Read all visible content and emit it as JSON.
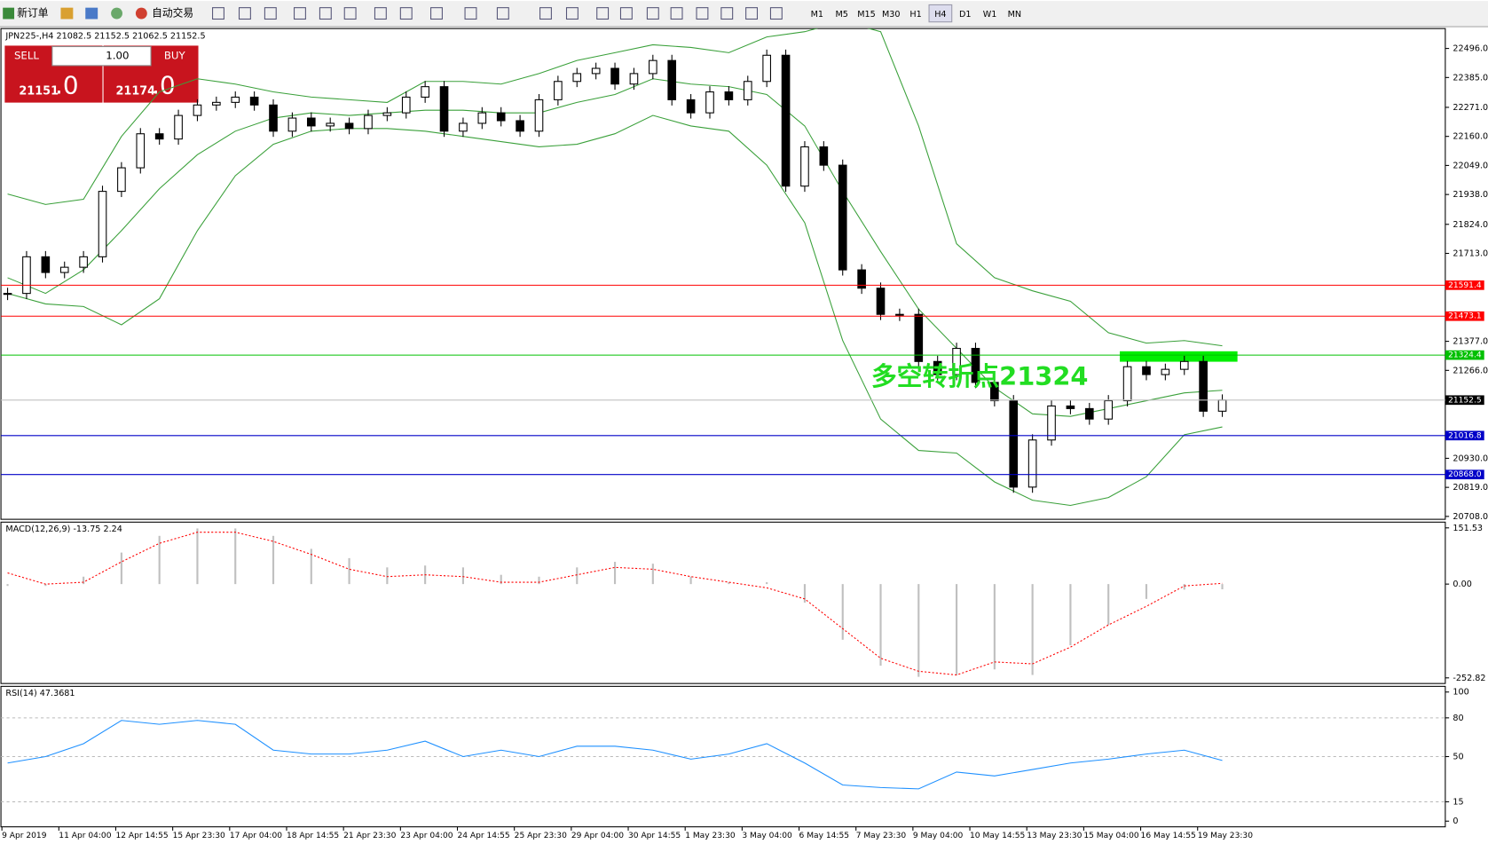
{
  "toolbar": {
    "new_order": "新订单",
    "auto_trading": "自动交易",
    "timeframes": [
      "M1",
      "M5",
      "M15",
      "M30",
      "H1",
      "H4",
      "D1",
      "W1",
      "MN"
    ],
    "active_timeframe": "H4"
  },
  "trade_panel": {
    "sell": "SELL",
    "buy": "BUY",
    "lots": "1.00",
    "sell_big": "21151",
    "sell_small": ".0",
    "buy_big": "21174",
    "buy_small": ".0"
  },
  "chart_data": [
    {
      "type": "candlestick",
      "title": "JPN225-,H4  21082.5 21152.5 21062.5 21152.5",
      "annotation": "多空转折点21324",
      "annotation_color": "#22dd22",
      "closes": [
        21560,
        21700,
        21640,
        21660,
        21700,
        21950,
        22040,
        22170,
        22150,
        22240,
        22280,
        22290,
        22310,
        22280,
        22180,
        22230,
        22200,
        22210,
        22190,
        22240,
        22250,
        22310,
        22350,
        22180,
        22210,
        22250,
        22220,
        22180,
        22300,
        22370,
        22400,
        22420,
        22360,
        22400,
        22450,
        22300,
        22250,
        22330,
        22300,
        22370,
        22470,
        21970,
        22120,
        22050,
        21650,
        21580,
        21480,
        21480,
        21300,
        21250,
        21350,
        21220,
        21150,
        20820,
        21000,
        21130,
        21120,
        21080,
        21150,
        21280,
        21250,
        21270,
        21300,
        21110,
        21152.5
      ],
      "bands": [
        {
          "name": "Upper",
          "color": "#3aa03a",
          "values": [
            21940,
            21900,
            21920,
            22160,
            22330,
            22380,
            22360,
            22330,
            22310,
            22300,
            22290,
            22370,
            22370,
            22360,
            22400,
            22450,
            22480,
            22510,
            22500,
            22480,
            22540,
            22560,
            22600,
            22560,
            22200,
            21750,
            21620,
            21570,
            21530,
            21410,
            21370,
            21380,
            21360
          ]
        },
        {
          "name": "Middle",
          "color": "#3aa03a",
          "values": [
            21620,
            21560,
            21650,
            21800,
            21960,
            22090,
            22180,
            22230,
            22250,
            22240,
            22250,
            22260,
            22260,
            22250,
            22250,
            22290,
            22320,
            22380,
            22360,
            22350,
            22320,
            22200,
            21950,
            21720,
            21500,
            21350,
            21200,
            21100,
            21090,
            21120,
            21150,
            21180,
            21190
          ]
        },
        {
          "name": "Lower",
          "color": "#3aa03a",
          "values": [
            21560,
            21520,
            21510,
            21440,
            21540,
            21800,
            22010,
            22130,
            22180,
            22190,
            22190,
            22180,
            22160,
            22140,
            22120,
            22130,
            22170,
            22240,
            22200,
            22180,
            22050,
            21830,
            21380,
            21080,
            20960,
            20950,
            20840,
            20770,
            20750,
            20780,
            20860,
            21020,
            21050
          ]
        }
      ],
      "hlines": [
        {
          "value": 21591.4,
          "color": "#ff0000"
        },
        {
          "value": 21473.1,
          "color": "#ff0000"
        },
        {
          "value": 21324.4,
          "color": "#00c000"
        },
        {
          "value": 21152.5,
          "color": "#c0c0c0"
        },
        {
          "value": 21016.8,
          "color": "#0000c8"
        },
        {
          "value": 20868,
          "label": "20868.0",
          "color": "#0000c8"
        }
      ],
      "ylim": [
        20697,
        22572
      ],
      "yticks": [
        {
          "value": 22496,
          "label": "22496.0"
        },
        {
          "value": 22385,
          "label": "22385.0"
        },
        {
          "value": 22271,
          "label": "22271.0"
        },
        {
          "value": 22160,
          "label": "22160.0"
        },
        {
          "value": 22049,
          "label": "22049.0"
        },
        {
          "value": 21938,
          "label": "21938.0"
        },
        {
          "value": 21824,
          "label": "21824.0"
        },
        {
          "value": 21713,
          "label": "21713.0"
        },
        {
          "value": 21377,
          "label": "21377.0"
        },
        {
          "value": 21266,
          "label": "21266.0"
        },
        {
          "value": 20930,
          "label": "20930.0"
        },
        {
          "value": 20819,
          "label": "20819.0"
        },
        {
          "value": 20708,
          "label": "20708.0"
        }
      ]
    },
    {
      "type": "macd",
      "title": "MACD(12,26,9) -13.75 2.24",
      "series": [
        {
          "name": "MACD",
          "color": "#c0c0c0",
          "values": [
            -5,
            -5,
            20,
            85,
            130,
            150,
            150,
            130,
            95,
            70,
            45,
            50,
            45,
            25,
            20,
            45,
            60,
            55,
            20,
            5,
            5,
            -50,
            -150,
            -220,
            -250,
            -245,
            -230,
            -245,
            -165,
            -110,
            -40,
            -15,
            -14
          ]
        },
        {
          "name": "Signal",
          "color": "#ff0000",
          "values": [
            30,
            0,
            5,
            60,
            110,
            140,
            140,
            115,
            80,
            40,
            20,
            25,
            20,
            5,
            5,
            25,
            45,
            40,
            20,
            5,
            -10,
            -40,
            -120,
            -200,
            -235,
            -245,
            -210,
            -215,
            -170,
            -110,
            -60,
            -5,
            2
          ]
        }
      ],
      "ylim": [
        -268,
        167
      ],
      "yticks": [
        151.53,
        {
          "value": 0,
          "label": "0.00"
        },
        -252.82
      ]
    },
    {
      "type": "rsi",
      "title": "RSI(14) 47.3681",
      "series": [
        {
          "name": "RSI",
          "color": "#1e90ff",
          "values": [
            45,
            50,
            60,
            78,
            75,
            78,
            75,
            55,
            52,
            52,
            55,
            62,
            50,
            55,
            50,
            58,
            58,
            55,
            48,
            52,
            60,
            45,
            28,
            26,
            25,
            38,
            35,
            40,
            45,
            48,
            52,
            55,
            47
          ]
        }
      ],
      "levels": [
        80,
        50,
        15
      ],
      "ylim": [
        -4.4,
        104.4
      ],
      "yticks": [
        100,
        80,
        50,
        15,
        0
      ],
      "time_labels": [
        "9 Apr 2019",
        "11 Apr 04:00",
        "12 Apr 14:55",
        "15 Apr 23:30",
        "17 Apr 04:00",
        "18 Apr 14:55",
        "21 Apr 23:30",
        "23 Apr 04:00",
        "24 Apr 14:55",
        "25 Apr 23:30",
        "29 Apr 04:00",
        "30 Apr 14:55",
        "1 May 23:30",
        "3 May 04:00",
        "6 May 14:55",
        "7 May 23:30",
        "9 May 04:00",
        "10 May 14:55",
        "13 May 23:30",
        "15 May 04:00",
        "16 May 14:55",
        "19 May 23:30"
      ]
    }
  ]
}
